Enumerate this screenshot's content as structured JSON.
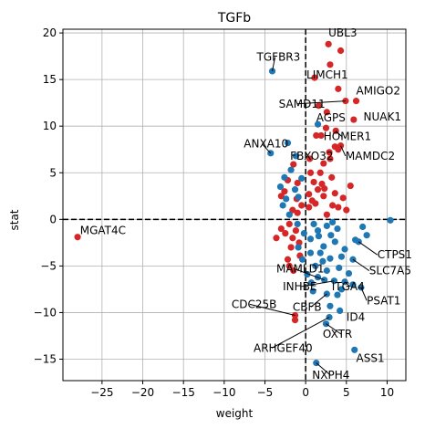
{
  "chart_data": {
    "type": "scatter",
    "title": "TGFb",
    "xlabel": "weight",
    "ylabel": "stat",
    "xlim": [
      -29.8,
      12.3
    ],
    "ylim": [
      -17.3,
      20.4
    ],
    "xticks": [
      -25,
      -20,
      -15,
      -10,
      -5,
      0,
      5,
      10
    ],
    "yticks": [
      -15,
      -10,
      -5,
      0,
      5,
      10,
      15,
      20
    ],
    "grid": true,
    "legend": "none",
    "reference_lines": {
      "x": 0,
      "y": 0
    },
    "colors": {
      "positive": "#d62728",
      "negative": "#1f77b4"
    },
    "series": [
      {
        "color_key": "positive",
        "points": [
          [
            -28.0,
            -1.9
          ],
          [
            4.3,
            18.1
          ],
          [
            2.8,
            18.8
          ],
          [
            3.0,
            16.6
          ],
          [
            4.0,
            14.0
          ],
          [
            1.1,
            15.2
          ],
          [
            6.2,
            12.7
          ],
          [
            4.9,
            12.7
          ],
          [
            1.6,
            12.2
          ],
          [
            5.9,
            10.7
          ],
          [
            1.3,
            9.0
          ],
          [
            1.9,
            9.0
          ],
          [
            2.5,
            9.8
          ],
          [
            3.7,
            9.5
          ],
          [
            4.3,
            7.9
          ],
          [
            3.6,
            7.8
          ],
          [
            2.9,
            7.2
          ],
          [
            4.0,
            7.5
          ],
          [
            3.0,
            6.5
          ],
          [
            2.2,
            6.0
          ],
          [
            -1.5,
            5.9
          ],
          [
            -2.2,
            4.2
          ],
          [
            -1.0,
            3.9
          ],
          [
            0.6,
            5.0
          ],
          [
            1.8,
            5.0
          ],
          [
            3.2,
            4.5
          ],
          [
            1.0,
            4.0
          ],
          [
            2.3,
            3.3
          ],
          [
            0.4,
            2.7
          ],
          [
            2.2,
            2.5
          ],
          [
            0.8,
            2.0
          ],
          [
            4.6,
            2.3
          ],
          [
            3.3,
            1.5
          ],
          [
            1.2,
            1.7
          ],
          [
            0.4,
            1.3
          ],
          [
            -1.1,
            2.2
          ],
          [
            -1.6,
            1.0
          ],
          [
            -2.6,
            3.0
          ],
          [
            -3.0,
            2.5
          ],
          [
            -0.5,
            1.5
          ],
          [
            -1.0,
            0.7
          ],
          [
            4.0,
            1.3
          ],
          [
            5.0,
            1.0
          ],
          [
            2.6,
            0.5
          ],
          [
            -2.0,
            -0.5
          ],
          [
            -2.5,
            -1.5
          ],
          [
            -1.6,
            -2.0
          ],
          [
            -3.0,
            -1.0
          ],
          [
            -1.2,
            -1.2
          ],
          [
            -0.8,
            -2.5
          ],
          [
            -3.6,
            -2.0
          ],
          [
            -1.8,
            -3.0
          ],
          [
            -0.7,
            -3.9
          ],
          [
            -2.2,
            -4.3
          ],
          [
            -1.5,
            -5.5
          ],
          [
            -2.0,
            -5.0
          ],
          [
            -1.3,
            -10.3
          ],
          [
            -1.3,
            -10.8
          ],
          [
            2.0,
            3.8
          ],
          [
            5.5,
            3.6
          ],
          [
            3.6,
            2.8
          ],
          [
            1.5,
            3.2
          ],
          [
            0.5,
            6.5
          ],
          [
            2.6,
            11.5
          ]
        ]
      },
      {
        "color_key": "negative",
        "points": [
          [
            -4.1,
            15.9
          ],
          [
            1.5,
            10.2
          ],
          [
            -2.2,
            8.2
          ],
          [
            -4.3,
            7.1
          ],
          [
            -1.2,
            6.8
          ],
          [
            -1.8,
            5.3
          ],
          [
            -2.6,
            4.5
          ],
          [
            -3.1,
            3.5
          ],
          [
            -2.4,
            2.2
          ],
          [
            -2.8,
            1.5
          ],
          [
            -1.3,
            3.2
          ],
          [
            -0.9,
            2.4
          ],
          [
            -0.5,
            4.4
          ],
          [
            -2.0,
            0.5
          ],
          [
            10.4,
            -0.1
          ],
          [
            7.0,
            -0.8
          ],
          [
            6.5,
            -2.4
          ],
          [
            6.1,
            -2.2
          ],
          [
            7.5,
            -1.7
          ],
          [
            5.8,
            -4.3
          ],
          [
            4.8,
            -3.2
          ],
          [
            1.0,
            -0.5
          ],
          [
            1.5,
            -1.2
          ],
          [
            2.6,
            -0.7
          ],
          [
            3.1,
            -1.7
          ],
          [
            3.6,
            -2.4
          ],
          [
            2.2,
            -2.9
          ],
          [
            0.6,
            -2.1
          ],
          [
            1.8,
            -3.6
          ],
          [
            3.0,
            -4.2
          ],
          [
            2.6,
            -5.5
          ],
          [
            4.1,
            -5.2
          ],
          [
            1.2,
            -5.0
          ],
          [
            2.3,
            -6.5
          ],
          [
            3.5,
            -6.6
          ],
          [
            4.8,
            -6.7
          ],
          [
            4.4,
            -7.5
          ],
          [
            3.9,
            -8.1
          ],
          [
            2.6,
            -8.0
          ],
          [
            3.0,
            -9.3
          ],
          [
            4.2,
            -9.8
          ],
          [
            2.5,
            -11.2
          ],
          [
            2.9,
            -10.5
          ],
          [
            6.8,
            -7.3
          ],
          [
            5.8,
            -7.0
          ],
          [
            6.0,
            -14.0
          ],
          [
            1.3,
            -15.4
          ],
          [
            1.5,
            -6.2
          ],
          [
            0.7,
            -6.8
          ],
          [
            0.2,
            -5.9
          ],
          [
            -0.4,
            -4.3
          ],
          [
            -0.9,
            -3.0
          ],
          [
            -0.2,
            -1.5
          ],
          [
            0.6,
            -3.6
          ],
          [
            5.3,
            -5.8
          ],
          [
            4.4,
            -4.0
          ],
          [
            1.6,
            -1.8
          ],
          [
            2.1,
            -4.5
          ],
          [
            3.9,
            -1.0
          ],
          [
            0.9,
            -7.7
          ],
          [
            3.3,
            -0.3
          ],
          [
            -1.0,
            -0.5
          ]
        ]
      }
    ],
    "annotations": [
      {
        "text": "UBL3",
        "x": 2.8,
        "y": 18.8,
        "tx": 2.8,
        "ty": 19.6
      },
      {
        "text": "TGFBR3",
        "x": -4.1,
        "y": 15.9,
        "tx": -6.0,
        "ty": 17.0
      },
      {
        "text": "LIMCH1",
        "x": 1.1,
        "y": 15.2,
        "tx": 0.1,
        "ty": 15.1
      },
      {
        "text": "AMIGO2",
        "x": 6.2,
        "y": 12.7,
        "tx": 6.2,
        "ty": 13.4
      },
      {
        "text": "SAMD11",
        "x": 4.9,
        "y": 12.7,
        "tx": -3.3,
        "ty": 12.0
      },
      {
        "text": "NUAK1",
        "x": 5.9,
        "y": 10.7,
        "tx": 7.1,
        "ty": 10.6
      },
      {
        "text": "AGPS",
        "x": 1.5,
        "y": 10.2,
        "tx": 1.3,
        "ty": 10.5
      },
      {
        "text": "HOMER1",
        "x": 3.7,
        "y": 9.5,
        "tx": 2.2,
        "ty": 8.5
      },
      {
        "text": "ANXA10",
        "x": -4.3,
        "y": 7.1,
        "tx": -7.6,
        "ty": 7.7
      },
      {
        "text": "FBXO32",
        "x": -1.2,
        "y": 6.8,
        "tx": -1.9,
        "ty": 6.4
      },
      {
        "text": "MAMDC2",
        "x": 4.3,
        "y": 7.9,
        "tx": 4.9,
        "ty": 6.4
      },
      {
        "text": "MGAT4C",
        "x": -28.0,
        "y": -1.9,
        "tx": -27.7,
        "ty": -1.6
      },
      {
        "text": "CTPS1",
        "x": 6.5,
        "y": -2.4,
        "tx": 8.8,
        "ty": -4.2
      },
      {
        "text": "SLC7A5",
        "x": 5.8,
        "y": -4.3,
        "tx": 7.8,
        "ty": -5.9
      },
      {
        "text": "MAMLD1",
        "x": 2.3,
        "y": -6.5,
        "tx": -3.6,
        "ty": -5.7
      },
      {
        "text": "INHBE",
        "x": 3.5,
        "y": -6.6,
        "tx": -2.8,
        "ty": -7.6
      },
      {
        "text": "ITGA4",
        "x": 4.8,
        "y": -6.7,
        "tx": 3.2,
        "ty": -7.6
      },
      {
        "text": "PSAT1",
        "x": 6.8,
        "y": -7.3,
        "tx": 7.5,
        "ty": -9.1
      },
      {
        "text": "CDC25B",
        "x": -1.3,
        "y": -10.3,
        "tx": -9.1,
        "ty": -9.5
      },
      {
        "text": "CBFB",
        "x": 2.6,
        "y": -8.0,
        "tx": -1.6,
        "ty": -9.8
      },
      {
        "text": "ID4",
        "x": 4.2,
        "y": -9.8,
        "tx": 5.0,
        "ty": -10.9
      },
      {
        "text": "OXTR",
        "x": 2.5,
        "y": -11.2,
        "tx": 2.1,
        "ty": -12.7
      },
      {
        "text": "ARHGEF40",
        "x": 2.9,
        "y": -10.5,
        "tx": -6.4,
        "ty": -14.2
      },
      {
        "text": "ASS1",
        "x": 6.0,
        "y": -14.0,
        "tx": 6.2,
        "ty": -15.3
      },
      {
        "text": "NXPH4",
        "x": 1.3,
        "y": -15.4,
        "tx": 0.8,
        "ty": -17.1
      }
    ]
  }
}
